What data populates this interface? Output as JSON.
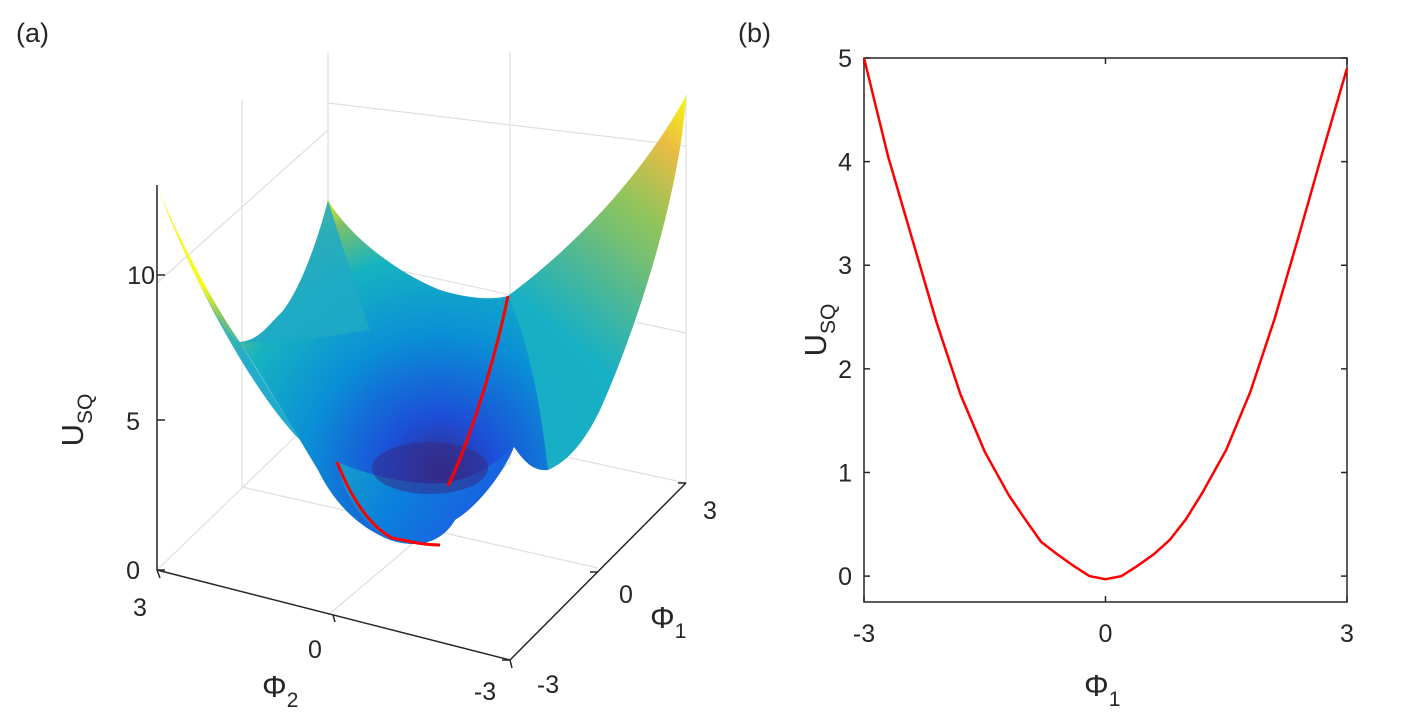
{
  "panels": {
    "a_label": "(a)",
    "b_label": "(b)"
  },
  "colors": {
    "curve": "#ff0000",
    "axis": "#262626",
    "grid": "#dfdfdf",
    "surface_low": "#352a87",
    "surface_mid": "#0f8fd8",
    "surface_high": "#f9fb0e"
  },
  "chart_data": [
    {
      "type": "surface",
      "panel": "(a)",
      "title": "",
      "xlabel": {
        "main": "Φ",
        "sub": "2"
      },
      "ylabel": {
        "main": "Φ",
        "sub": "1"
      },
      "zlabel": {
        "main": "U",
        "sub": "SQ"
      },
      "xlim": [
        -3,
        3
      ],
      "ylim": [
        -3,
        3
      ],
      "zlim": [
        0,
        13
      ],
      "x_ticks": [
        "3",
        "0",
        "-3"
      ],
      "y_ticks": [
        "-3",
        "0",
        "3"
      ],
      "z_ticks": [
        "0",
        "5",
        "10"
      ],
      "grid": true,
      "colormap": "parula",
      "highlighted_curve": {
        "color": "#ff0000",
        "along": "Φ2 = 0"
      }
    },
    {
      "type": "line",
      "panel": "(b)",
      "title": "",
      "xlabel": {
        "main": "Φ",
        "sub": "1"
      },
      "ylabel": {
        "main": "U",
        "sub": "SQ"
      },
      "xlim": [
        -3,
        3
      ],
      "ylim": [
        -0.25,
        5
      ],
      "x_ticks": [
        "-3",
        "0",
        "3"
      ],
      "y_ticks": [
        "0",
        "1",
        "2",
        "3",
        "4",
        "5"
      ],
      "grid": false,
      "series": [
        {
          "color": "#ff0000",
          "x": [
            -3,
            -2.7,
            -2.4,
            -2.1,
            -1.8,
            -1.5,
            -1.2,
            -1.0,
            -0.8,
            -0.6,
            -0.4,
            -0.2,
            0,
            0.2,
            0.4,
            0.6,
            0.8,
            1.0,
            1.2,
            1.5,
            1.8,
            2.1,
            2.4,
            2.7,
            3
          ],
          "y": [
            5.0,
            4.05,
            3.25,
            2.45,
            1.75,
            1.2,
            0.78,
            0.55,
            0.33,
            0.21,
            0.1,
            0.0,
            -0.03,
            0.0,
            0.1,
            0.21,
            0.35,
            0.55,
            0.8,
            1.22,
            1.78,
            2.48,
            3.28,
            4.1,
            4.9
          ]
        }
      ]
    }
  ]
}
